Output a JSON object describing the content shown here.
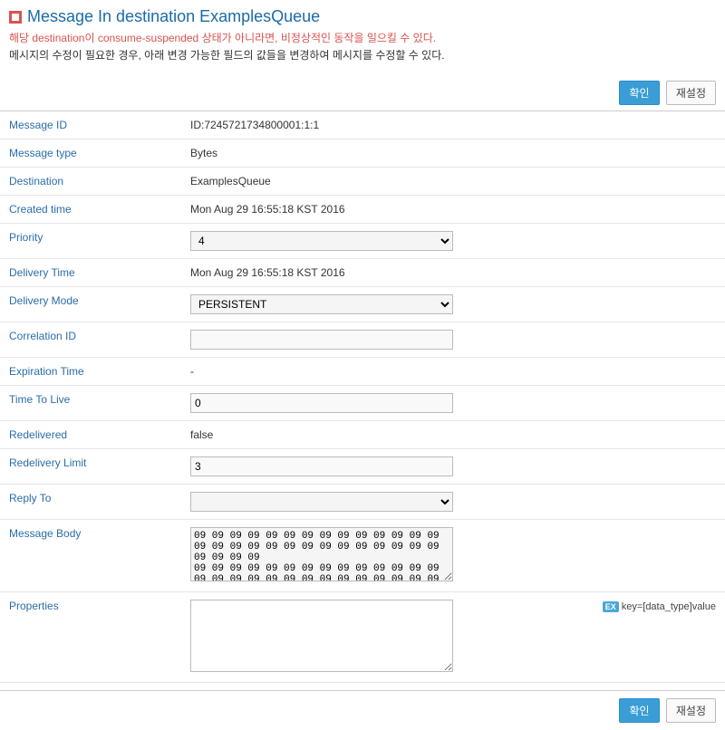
{
  "header": {
    "title": "Message In destination ExamplesQueue",
    "warning": "해당 destination이 consume-suspended 상태가 아니라면, 비정상적인 동작을 일으킬 수 있다.",
    "info": "메시지의 수정이 필요한 경우, 아래 변경 가능한 필드의 값들을 변경하여 메시지를 수정할 수 있다."
  },
  "buttons": {
    "confirm": "확인",
    "reset": "재설정"
  },
  "fields": {
    "message_id": {
      "label": "Message ID",
      "value": "ID:7245721734800001:1:1"
    },
    "message_type": {
      "label": "Message type",
      "value": "Bytes"
    },
    "destination": {
      "label": "Destination",
      "value": "ExamplesQueue"
    },
    "created_time": {
      "label": "Created time",
      "value": "Mon Aug 29 16:55:18 KST 2016"
    },
    "priority": {
      "label": "Priority",
      "value": "4"
    },
    "delivery_time": {
      "label": "Delivery Time",
      "value": "Mon Aug 29 16:55:18 KST 2016"
    },
    "delivery_mode": {
      "label": "Delivery Mode",
      "value": "PERSISTENT"
    },
    "correlation_id": {
      "label": "Correlation ID",
      "value": ""
    },
    "expiration_time": {
      "label": "Expiration Time",
      "value": "-"
    },
    "time_to_live": {
      "label": "Time To Live",
      "value": "0"
    },
    "redelivered": {
      "label": "Redelivered",
      "value": "false"
    },
    "redelivery_limit": {
      "label": "Redelivery Limit",
      "value": "3"
    },
    "reply_to": {
      "label": "Reply To",
      "value": ""
    },
    "message_body": {
      "label": "Message Body",
      "value": "09 09 09 09 09 09 09 09 09 09 09 09 09 09 09 09 09 09 09 09 09 09 09 09 09 09 09 09 09 09 09 09\n09 09 09 09 09 09 09 09 09 09 09 09 09 09 09 09 09 09 09 09 09 09 09 09 09 09 09 09 09 09 09 09"
    },
    "properties": {
      "label": "Properties",
      "value": "",
      "hint_badge": "EX",
      "hint_text": "key=[data_type]value"
    }
  }
}
